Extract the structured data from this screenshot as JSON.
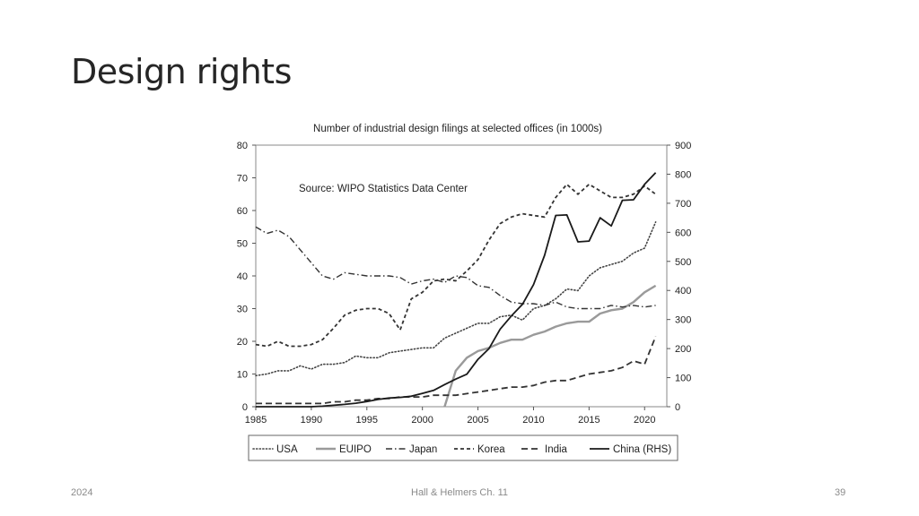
{
  "slide": {
    "title": "Design rights",
    "footer_left": "2024",
    "footer_center": "Hall & Helmers Ch. 11",
    "page_number": "39"
  },
  "chart_data": {
    "type": "line",
    "title": "Number of industrial design filings at selected offices (in 1000s)",
    "annotation": "Source: WIPO Statistics Data Center",
    "xlim": [
      1985,
      2022
    ],
    "x_ticks": [
      1985,
      1990,
      1995,
      2000,
      2005,
      2010,
      2015,
      2020
    ],
    "ylim_left": [
      0,
      80
    ],
    "y_ticks_left": [
      0,
      10,
      20,
      30,
      40,
      50,
      60,
      70,
      80
    ],
    "ylim_right": [
      0,
      900
    ],
    "y_ticks_right": [
      0,
      100,
      200,
      300,
      400,
      500,
      600,
      700,
      800,
      900
    ],
    "legend_position": "bottom",
    "grid": false,
    "series": [
      {
        "name": "USA",
        "style": "dotted",
        "color": "#444444",
        "axis": "left",
        "x": [
          1985,
          1986,
          1987,
          1988,
          1989,
          1990,
          1991,
          1992,
          1993,
          1994,
          1995,
          1996,
          1997,
          1998,
          1999,
          2000,
          2001,
          2002,
          2003,
          2004,
          2005,
          2006,
          2007,
          2008,
          2009,
          2010,
          2011,
          2012,
          2013,
          2014,
          2015,
          2016,
          2017,
          2018,
          2019,
          2020,
          2021
        ],
        "values": [
          9.5,
          10,
          11,
          11,
          12.5,
          11.5,
          13,
          13,
          13.5,
          15.5,
          15,
          15,
          16.5,
          17,
          17.5,
          18,
          18,
          21,
          22.5,
          24,
          25.5,
          25.5,
          27.5,
          28,
          26.5,
          30,
          31,
          33,
          36,
          35.5,
          40,
          42.5,
          43.5,
          44.5,
          47,
          48.5,
          56.5
        ]
      },
      {
        "name": "EUIPO",
        "style": "solid",
        "color": "#9a9a9a",
        "axis": "left",
        "x": [
          2002,
          2003,
          2004,
          2005,
          2006,
          2007,
          2008,
          2009,
          2010,
          2011,
          2012,
          2013,
          2014,
          2015,
          2016,
          2017,
          2018,
          2019,
          2020,
          2021
        ],
        "values": [
          0,
          11,
          15,
          17,
          18,
          19.5,
          20.5,
          20.5,
          22,
          23,
          24.5,
          25.5,
          26,
          26,
          28.5,
          29.5,
          30,
          32,
          35,
          37
        ]
      },
      {
        "name": "Japan",
        "style": "dashdot",
        "color": "#333333",
        "axis": "left",
        "x": [
          1985,
          1986,
          1987,
          1988,
          1989,
          1990,
          1991,
          1992,
          1993,
          1994,
          1995,
          1996,
          1997,
          1998,
          1999,
          2000,
          2001,
          2002,
          2003,
          2004,
          2005,
          2006,
          2007,
          2008,
          2009,
          2010,
          2011,
          2012,
          2013,
          2014,
          2015,
          2016,
          2017,
          2018,
          2019,
          2020,
          2021
        ],
        "values": [
          55,
          53,
          54,
          52,
          48,
          44,
          40,
          39,
          41,
          40.5,
          40,
          40,
          40,
          39.5,
          37.5,
          38.5,
          39,
          38,
          40,
          39.5,
          37,
          36.5,
          34,
          32,
          31.5,
          31.5,
          31,
          32,
          30.5,
          30,
          30,
          30,
          31,
          30.5,
          31,
          30.5,
          31
        ]
      },
      {
        "name": "Korea",
        "style": "dashed-short",
        "color": "#333333",
        "axis": "left",
        "x": [
          1985,
          1986,
          1987,
          1988,
          1989,
          1990,
          1991,
          1992,
          1993,
          1994,
          1995,
          1996,
          1997,
          1998,
          1999,
          2000,
          2001,
          2002,
          2003,
          2004,
          2005,
          2006,
          2007,
          2008,
          2009,
          2010,
          2011,
          2012,
          2013,
          2014,
          2015,
          2016,
          2017,
          2018,
          2019,
          2020,
          2021
        ],
        "values": [
          19,
          18.5,
          20,
          18.5,
          18.5,
          19,
          20.5,
          24,
          28,
          29.5,
          30,
          30,
          28.5,
          23.5,
          33,
          35,
          38.5,
          39,
          38.5,
          41.5,
          45,
          51,
          56,
          58,
          59,
          58.5,
          58,
          64,
          68,
          65,
          68,
          66,
          64,
          64,
          65,
          67.5,
          65
        ]
      },
      {
        "name": "India",
        "style": "dashed-long",
        "color": "#333333",
        "axis": "left",
        "x": [
          1985,
          1986,
          1987,
          1988,
          1989,
          1990,
          1991,
          1992,
          1993,
          1994,
          1995,
          1996,
          1997,
          1998,
          1999,
          2000,
          2001,
          2002,
          2003,
          2004,
          2005,
          2006,
          2007,
          2008,
          2009,
          2010,
          2011,
          2012,
          2013,
          2014,
          2015,
          2016,
          2017,
          2018,
          2019,
          2020,
          2021
        ],
        "values": [
          1,
          1,
          1,
          1,
          1,
          1,
          1,
          1.5,
          1.5,
          2,
          2,
          2.5,
          2.5,
          3,
          3,
          3,
          3.5,
          3.5,
          3.5,
          4,
          4.5,
          5,
          5.5,
          6,
          6,
          6.5,
          7.5,
          8,
          8,
          9,
          10,
          10.5,
          11,
          12,
          14,
          13,
          21.5
        ]
      },
      {
        "name": "China (RHS)",
        "style": "solid-bold",
        "color": "#1a1a1a",
        "axis": "right",
        "x": [
          1985,
          1986,
          1987,
          1988,
          1989,
          1990,
          1991,
          1992,
          1993,
          1994,
          1995,
          1996,
          1997,
          1998,
          1999,
          2000,
          2001,
          2002,
          2003,
          2004,
          2005,
          2006,
          2007,
          2008,
          2009,
          2010,
          2011,
          2012,
          2013,
          2014,
          2015,
          2016,
          2017,
          2018,
          2019,
          2020,
          2021
        ],
        "values": [
          0,
          0,
          0,
          0,
          0,
          0,
          2,
          5,
          8,
          12,
          18,
          25,
          30,
          32,
          36,
          46,
          56,
          76,
          95,
          112,
          163,
          200,
          267,
          312,
          352,
          420,
          521,
          658,
          660,
          567,
          570,
          650,
          622,
          710,
          712,
          765,
          805
        ]
      }
    ]
  }
}
